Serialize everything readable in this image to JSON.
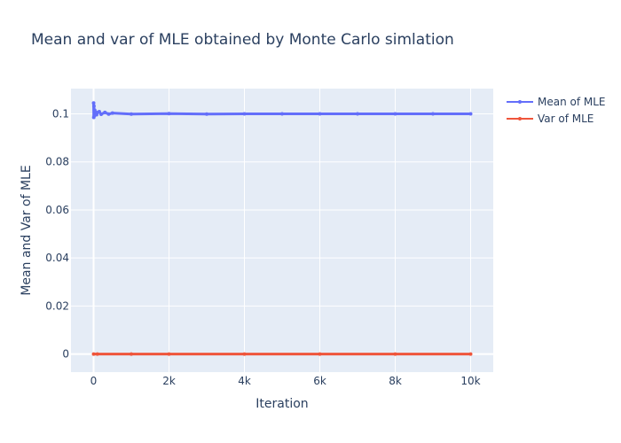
{
  "chart_data": {
    "type": "line",
    "title": "Mean and var of MLE obtained by Monte Carlo simlation",
    "xlabel": "Iteration",
    "ylabel": "Mean and Var of MLE",
    "xlim": [
      -600,
      10600
    ],
    "ylim": [
      -0.0075,
      0.1105
    ],
    "x_ticks": [
      0,
      2000,
      4000,
      6000,
      8000,
      10000
    ],
    "x_tick_labels": [
      "0",
      "2k",
      "4k",
      "6k",
      "8k",
      "10k"
    ],
    "y_ticks": [
      0,
      0.02,
      0.04,
      0.06,
      0.08,
      0.1
    ],
    "y_tick_labels": [
      "0",
      "0.02",
      "0.04",
      "0.06",
      "0.08",
      "0.1"
    ],
    "grid": true,
    "legend_position": "top-right",
    "series": [
      {
        "name": "Mean of MLE",
        "color": "#636efa",
        "x": [
          1,
          5,
          10,
          20,
          30,
          50,
          80,
          100,
          150,
          200,
          300,
          400,
          500,
          1000,
          2000,
          3000,
          4000,
          5000,
          6000,
          7000,
          8000,
          9000,
          10000
        ],
        "y": [
          0.1045,
          0.0985,
          0.1032,
          0.0992,
          0.1015,
          0.1008,
          0.0996,
          0.1005,
          0.1009,
          0.0998,
          0.1006,
          0.0999,
          0.1003,
          0.0999,
          0.1001,
          0.0999,
          0.1,
          0.1,
          0.1,
          0.1,
          0.1,
          0.1,
          0.1
        ]
      },
      {
        "name": "Var of MLE",
        "color": "#ef553b",
        "x": [
          1,
          100,
          1000,
          2000,
          4000,
          6000,
          8000,
          10000
        ],
        "y": [
          0.0,
          0.0,
          0.0,
          0.0,
          0.0,
          0.0,
          0.0,
          0.0
        ]
      }
    ]
  }
}
